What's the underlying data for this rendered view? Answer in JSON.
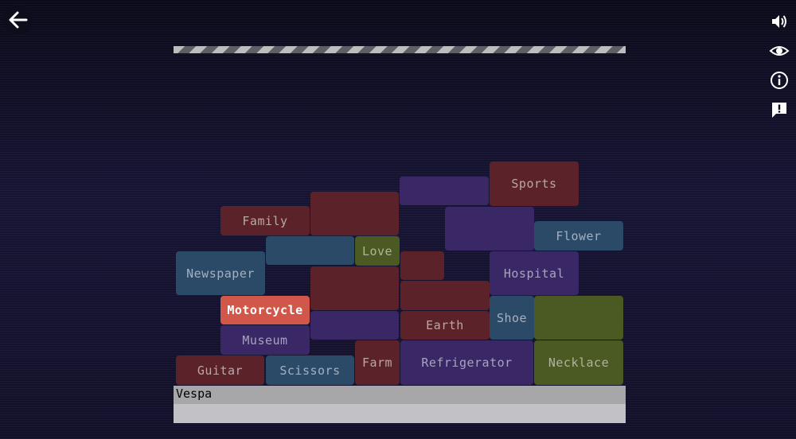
{
  "toolbar": {
    "back_icon": "arrow-left-icon",
    "side_icons": [
      "speaker-icon",
      "eye-icon",
      "info-icon",
      "report-icon"
    ]
  },
  "input": {
    "value": "Vespa"
  },
  "colors": {
    "red": "#5b2229",
    "purple": "#3a2766",
    "blue": "#2b4a68",
    "olive": "#4b5a23",
    "active": "#d1574a"
  },
  "blocks": {
    "sports": "Sports",
    "family": "Family",
    "flower": "Flower",
    "love": "Love",
    "newspaper": "Newspaper",
    "hospital": "Hospital",
    "motorcycle": "Motorcycle",
    "earth": "Earth",
    "shoe": "Shoe",
    "museum": "Museum",
    "guitar": "Guitar",
    "scissors": "Scissors",
    "farm": "Farm",
    "refrigerator": "Refrigerator",
    "necklace": "Necklace"
  }
}
